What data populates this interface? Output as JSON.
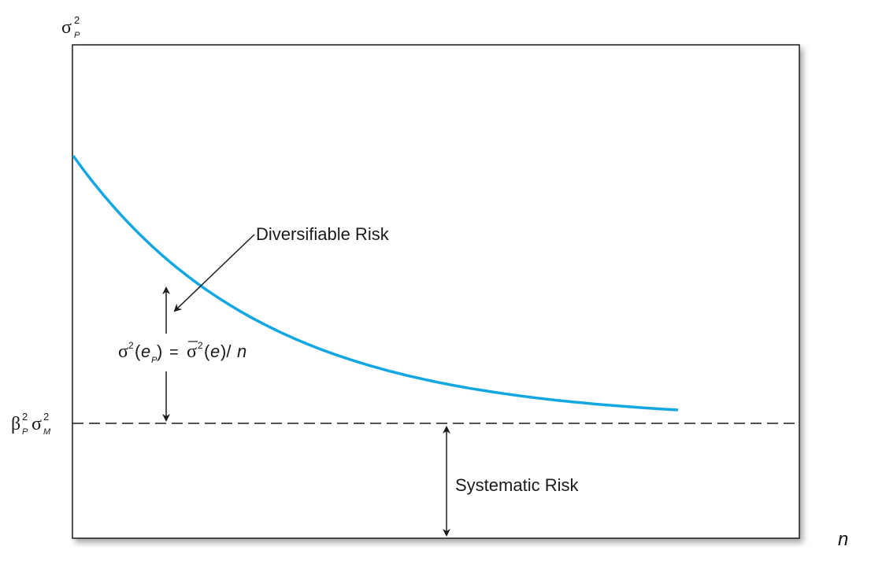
{
  "chart_data": {
    "type": "line",
    "ylabel": "σ",
    "ylabel_sup": "2",
    "ylabel_sub": "P",
    "xlabel": "n",
    "baseline_label": {
      "beta": "β",
      "beta_sup": "2",
      "beta_sub": "P",
      "sigma": "σ",
      "sigma_sup": "2",
      "sigma_sub": "M"
    },
    "formula": {
      "sigma": "σ",
      "sup": "2",
      "open": "(",
      "e": "e",
      "sub": "P",
      "close": ")",
      "equals": "=",
      "sigma_bar": "σ",
      "sup2": "2",
      "rest_open": "(",
      "e2": "e",
      "rest_close": ")/",
      "n": "n"
    },
    "annotations": {
      "diversifiable": "Diversifiable Risk",
      "systematic": "Systematic Risk"
    },
    "grid": false,
    "series": [
      {
        "color": "#12a7e0",
        "x": [
          1,
          5.5
        ],
        "asymptote": 0.08,
        "initial": 1.0
      }
    ],
    "baseline_style": "dashed"
  }
}
